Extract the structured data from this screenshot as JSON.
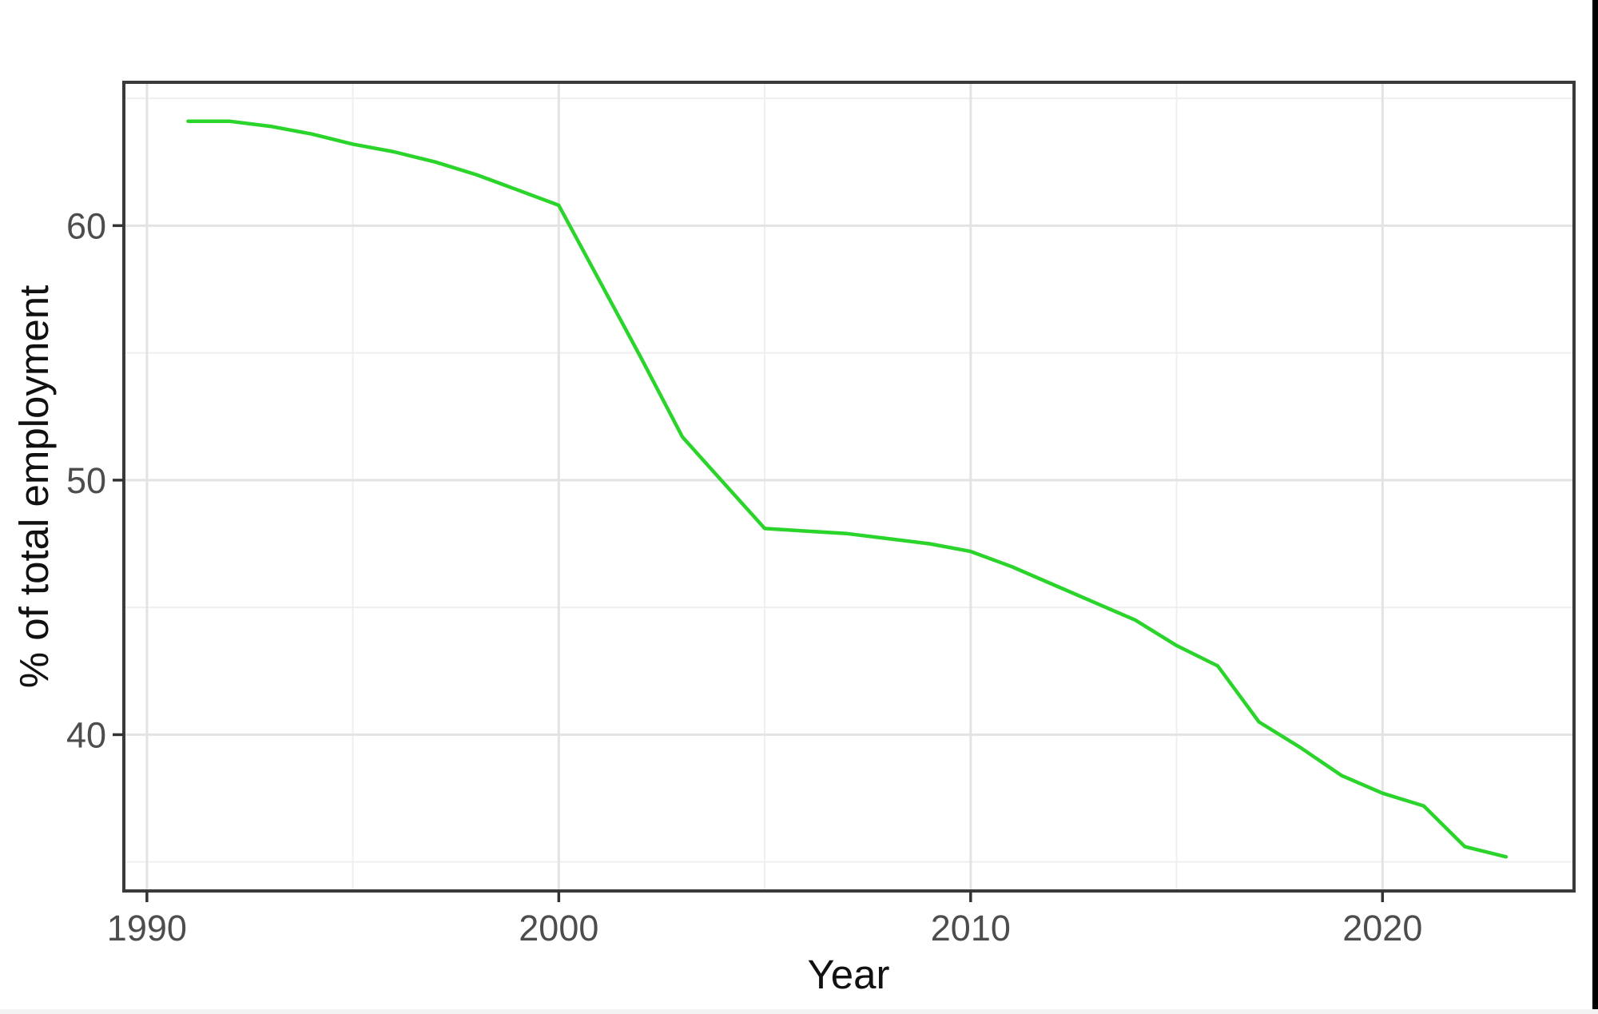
{
  "figure": {
    "background_color": "#ffffff",
    "panel_border_color": "#3a3a3a",
    "major_grid_color": "#e3e3e3",
    "minor_grid_color": "#efefef",
    "tick_mark_color": "#333333",
    "tick_label_color": "#4d4d4d",
    "axis_title_color": "#111111"
  },
  "artifacts": {
    "right_edge_bar_color": "#000000",
    "bottom_strip_color": "#f3f3f3"
  },
  "chart_data": {
    "type": "line",
    "title": "",
    "xlabel": "Year",
    "ylabel": "% of total employment",
    "line_color": "#2bd42b",
    "legend": "none",
    "grid": "major+minor",
    "xlim": [
      1989.44,
      2024.65
    ],
    "ylim": [
      33.86,
      65.63
    ],
    "x_major_ticks": [
      1990,
      2000,
      2010,
      2020
    ],
    "x_tick_labels": [
      "1990",
      "2000",
      "2010",
      "2020"
    ],
    "x_minor_gridlines": [
      1995,
      2005,
      2015
    ],
    "y_major_ticks": [
      40,
      50,
      60
    ],
    "y_tick_labels": [
      "40",
      "50",
      "60"
    ],
    "y_minor_gridlines": [
      35,
      45,
      55,
      65
    ],
    "x": [
      1991,
      1992,
      1993,
      1994,
      1995,
      1996,
      1997,
      1998,
      1999,
      2000,
      2001,
      2002,
      2003,
      2004,
      2005,
      2006,
      2007,
      2008,
      2009,
      2010,
      2011,
      2012,
      2013,
      2014,
      2015,
      2016,
      2017,
      2018,
      2019,
      2020,
      2021,
      2022,
      2023
    ],
    "series": [
      {
        "name": "% of total employment",
        "values": [
          64.1,
          64.1,
          63.9,
          63.6,
          63.2,
          62.9,
          62.5,
          62.0,
          61.4,
          60.8,
          57.8,
          54.8,
          51.7,
          49.9,
          48.1,
          48.0,
          47.9,
          47.7,
          47.5,
          47.2,
          46.6,
          45.9,
          45.2,
          44.5,
          43.5,
          42.7,
          40.5,
          39.5,
          38.4,
          37.7,
          37.2,
          35.6,
          35.2
        ]
      }
    ]
  }
}
